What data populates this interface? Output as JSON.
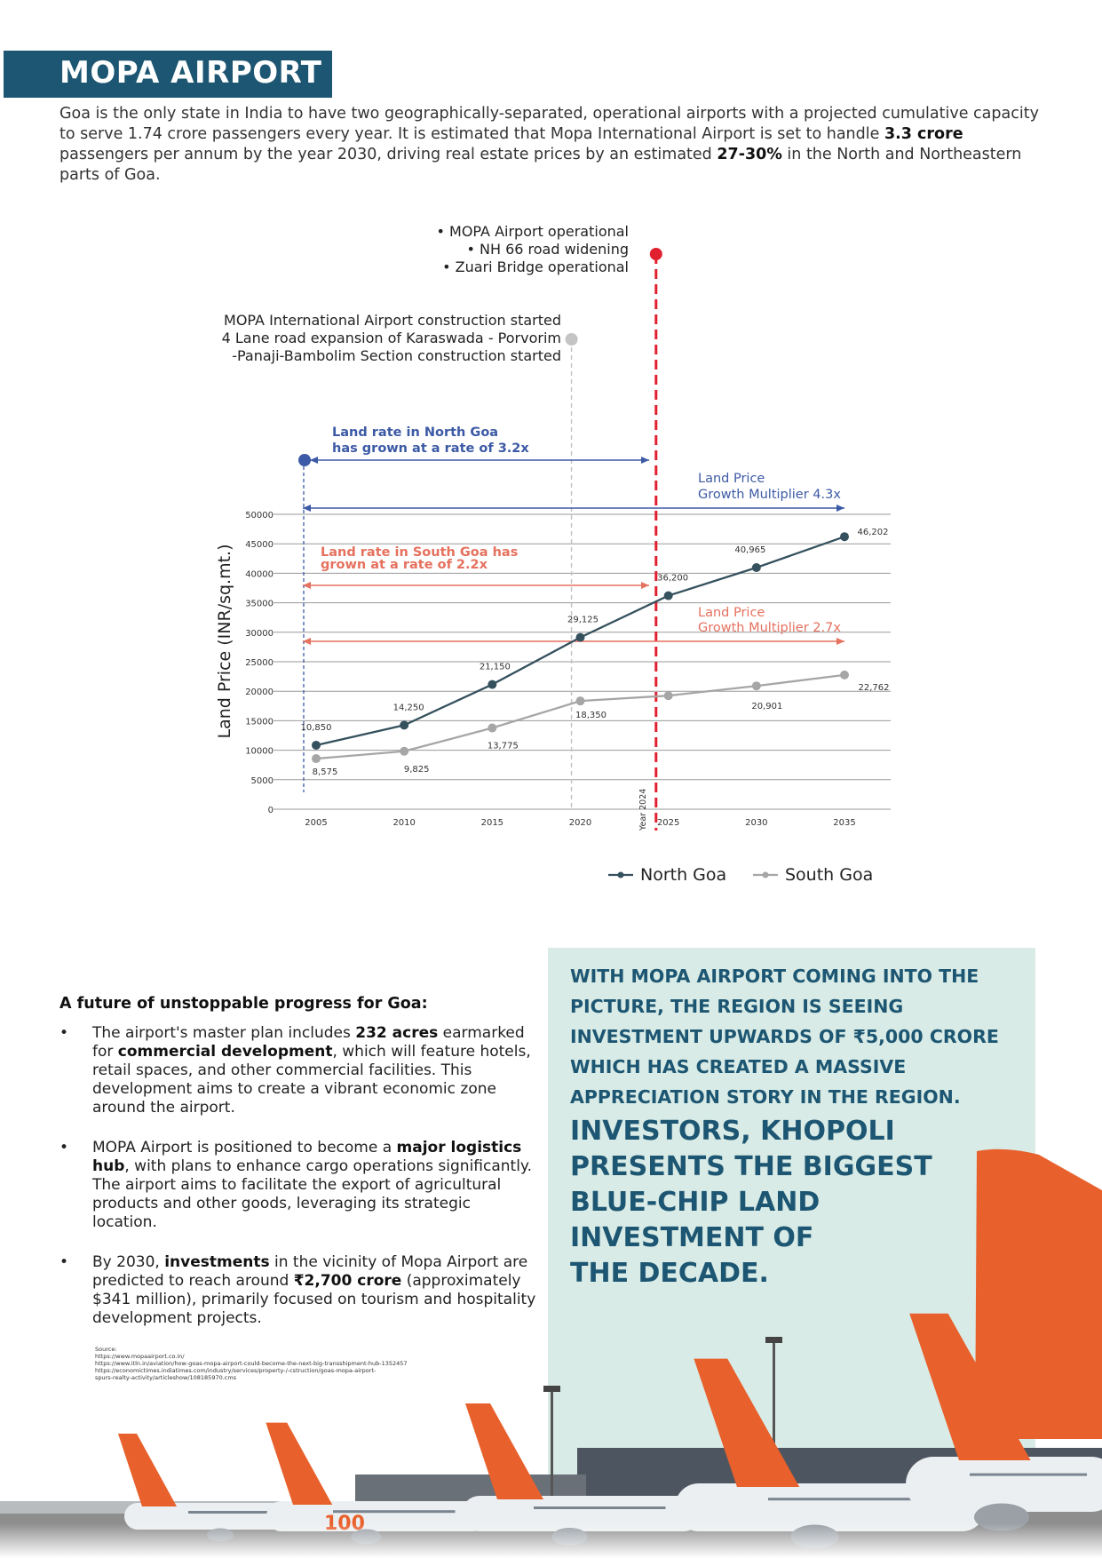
{
  "header": {
    "title": "MOPA AIRPORT"
  },
  "intro": {
    "part1": "Goa is the only state in India to have two geographically-separated, operational airports with a projected cumulative capacity to serve 1.74 crore passengers every year. It is estimated that Mopa International Airport is set to handle ",
    "bold1": "3.3 crore",
    "part2": " passengers per annum by the year 2030, driving real estate prices by an estimated ",
    "bold2": "27-30%",
    "part3": " in the North and Northeastern parts of Goa."
  },
  "chart_data": {
    "type": "line",
    "title": "",
    "xlabel": "",
    "ylabel": "Land Price (INR/sq.mt.)",
    "x": [
      2005,
      2010,
      2015,
      2020,
      2025,
      2030,
      2035
    ],
    "ylim": [
      0,
      50000
    ],
    "yticks": [
      0,
      5000,
      10000,
      15000,
      20000,
      25000,
      30000,
      35000,
      40000,
      45000,
      50000
    ],
    "series": [
      {
        "name": "North Goa",
        "color": "#35515e",
        "values": [
          10850,
          14250,
          21150,
          29125,
          36200,
          40965,
          46202
        ],
        "labels": [
          "10,850",
          "14,250",
          "21,150",
          "29,125",
          "36,200",
          "40,965",
          "46,202"
        ]
      },
      {
        "name": "South Goa",
        "color": "#a6a6a6",
        "values": [
          8575,
          9825,
          13775,
          18350,
          19250,
          20901,
          22762
        ],
        "labels": [
          "8,575",
          "9,825",
          "13,775",
          "18,350",
          "",
          "20,901",
          "22,762"
        ]
      }
    ],
    "year_marker": {
      "label": "Year 2024",
      "x": 2024.3
    },
    "milestones": [
      {
        "x": 2024.3,
        "color": "#e0202e",
        "lines": [
          "• MOPA Airport operational",
          "• NH 66 road widening",
          "• Zuari Bridge operational"
        ]
      },
      {
        "x": 2019.5,
        "color": "#c4c4c4",
        "lines": [
          "MOPA International Airport construction started",
          "4 Lane road expansion of Karaswada - Porvorim",
          "-Panaji-Bambolim Section construction started"
        ]
      }
    ],
    "annotations": {
      "north_rate": [
        "Land rate in North Goa",
        "has grown at a rate of 3.2x"
      ],
      "north_multiplier": [
        "Land Price",
        "Growth Multiplier 4.3x"
      ],
      "south_rate": [
        "Land rate in South Goa has",
        "grown at a rate of  2.2x"
      ],
      "south_multiplier": [
        "Land Price",
        "Growth Multiplier 2.7x"
      ]
    },
    "colors": {
      "north_annot": "#3c5aa5",
      "south_annot": "#e5715e"
    },
    "legend": {
      "position": "bottom-right"
    }
  },
  "future": {
    "heading": "A future of unstoppable progress for Goa:",
    "bullets": [
      {
        "parts": [
          {
            "t": "The airport's master plan includes "
          },
          {
            "t": "232 acres",
            "b": true
          },
          {
            "t": " earmarked for "
          },
          {
            "t": "commercial development",
            "b": true
          },
          {
            "t": ", which will feature hotels, retail spaces, and other commercial facilities. This development aims to create a vibrant economic zone around the airport."
          }
        ]
      },
      {
        "parts": [
          {
            "t": "MOPA Airport is positioned to become a "
          },
          {
            "t": "major logistics hub",
            "b": true
          },
          {
            "t": ", with plans to enhance cargo operations significantly. The airport aims to facilitate the export of agricultural products and other goods, leveraging its strategic location."
          }
        ]
      },
      {
        "parts": [
          {
            "t": "By 2030, "
          },
          {
            "t": "investments",
            "b": true
          },
          {
            "t": " in the vicinity of Mopa Airport are predicted to reach around "
          },
          {
            "t": "₹2,700 crore",
            "b": true
          },
          {
            "t": " (approximately $341 million), primarily focused on tourism and hospitality development projects."
          }
        ]
      }
    ],
    "sources": [
      "Source:",
      "https://www.mopaairport.co.in/",
      "https://www.itln.in/aviation/how-goas-mopa-airport-could-become-the-next-big-transshipment-hub-1352457",
      "https://economictimes.indiatimes.com/industry/services/property-/-cstruction/goas-mopa-airport-",
      "spurs-realty-activity/articleshow/108185970.cms"
    ]
  },
  "promo": {
    "small": "WITH MOPA AIRPORT COMING INTO THE PICTURE, THE REGION IS SEEING INVESTMENT UPWARDS OF ₹5,000 CRORE WHICH HAS CREATED A MASSIVE APPRECIATION STORY IN THE REGION.",
    "big": [
      "INVESTORS, KHOPOLI",
      "PRESENTS THE BIGGEST",
      "BLUE-CHIP LAND",
      "INVESTMENT OF",
      "THE DECADE."
    ]
  },
  "photo": {
    "fuselage_text": "100",
    "colors": {
      "tail": "#e8602c",
      "sky": "#d8ebe6",
      "tarmac": "#8e8e8e"
    }
  }
}
